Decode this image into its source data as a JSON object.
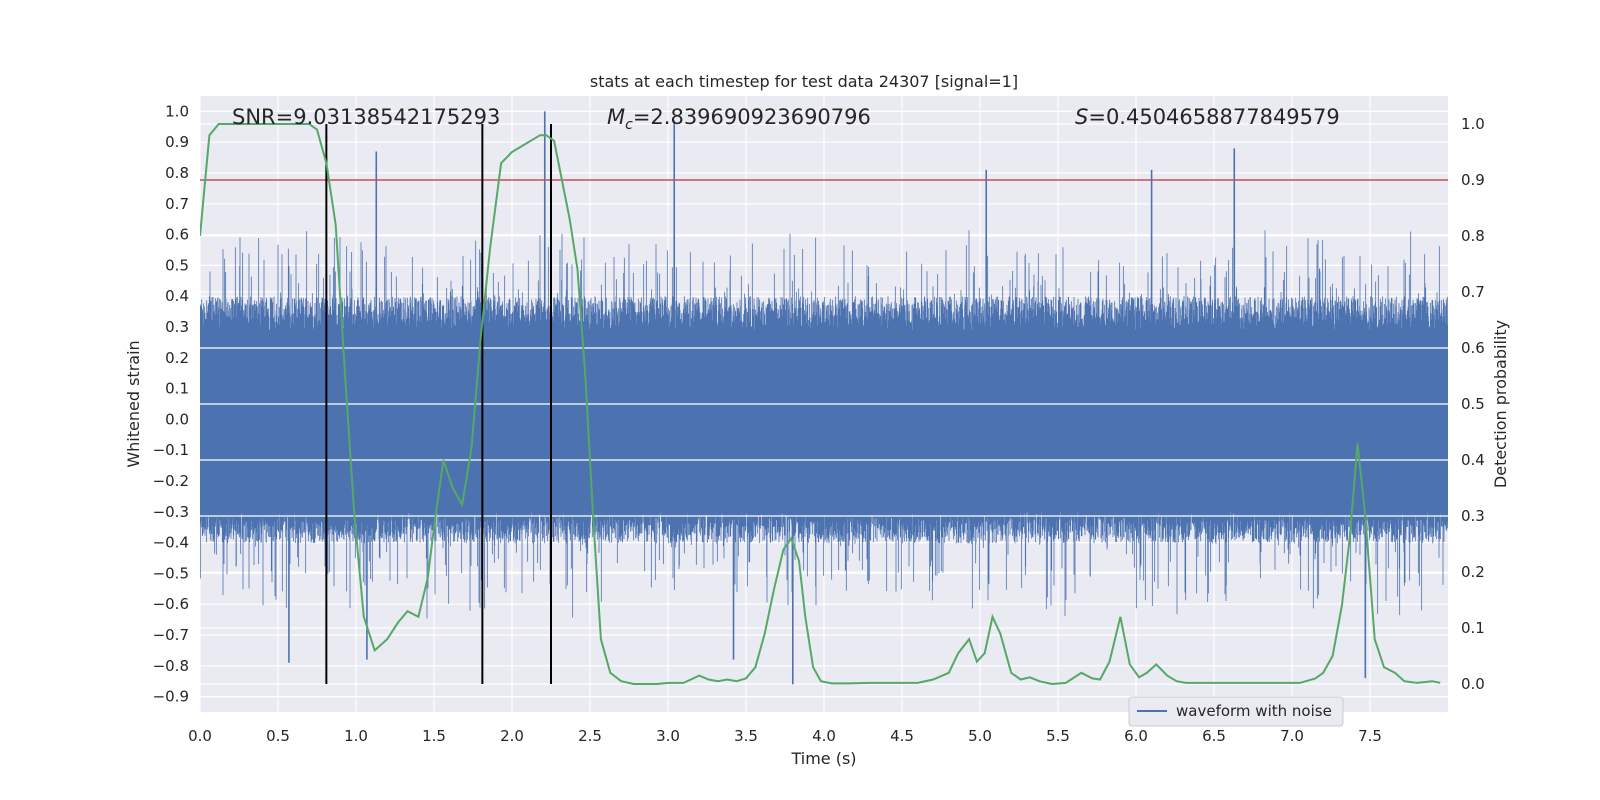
{
  "chart_data": {
    "type": "line",
    "title": "stats at each timestep for test data 24307 [signal=1]",
    "xlabel": "Time (s)",
    "ylabel_left": "Whitened strain",
    "ylabel_right": "Detection probability",
    "xlim": [
      0,
      8.0
    ],
    "ylim_left": [
      -0.95,
      1.05
    ],
    "ylim_right": [
      -0.05,
      1.05
    ],
    "x_ticks": [
      "0.0",
      "0.5",
      "1.0",
      "1.5",
      "2.0",
      "2.5",
      "3.0",
      "3.5",
      "4.0",
      "4.5",
      "5.0",
      "5.5",
      "6.0",
      "6.5",
      "7.0",
      "7.5"
    ],
    "y_left_ticks": [
      "-0.9",
      "-0.8",
      "-0.7",
      "-0.6",
      "-0.5",
      "-0.4",
      "-0.3",
      "-0.2",
      "-0.1",
      "0.0",
      "0.1",
      "0.2",
      "0.3",
      "0.4",
      "0.5",
      "0.6",
      "0.7",
      "0.8",
      "0.9",
      "1.0"
    ],
    "y_right_ticks": [
      "0.0",
      "0.1",
      "0.2",
      "0.3",
      "0.4",
      "0.5",
      "0.6",
      "0.7",
      "0.8",
      "0.9",
      "1.0"
    ],
    "annotations": {
      "snr": "SNR=9.03138542175293",
      "mc_symbol": "M",
      "mc_sub": "c",
      "mc_value": "=2.839690923690796",
      "s_symbol": "S",
      "s_value": "=0.4504658877849579"
    },
    "threshold": {
      "axis": "right",
      "value": 0.9,
      "color": "#c44e52"
    },
    "vertical_markers": {
      "x": [
        0.81,
        1.81,
        2.25
      ],
      "y_range_right": [
        0.0,
        1.0
      ],
      "color": "#000000"
    },
    "grid": true,
    "legend": {
      "location": "lower-right",
      "entries": [
        {
          "label": "waveform with noise",
          "color": "#4c72b0"
        }
      ]
    },
    "series": [
      {
        "name": "waveform with noise",
        "axis": "left",
        "style": "dense-noise",
        "color": "#4c72b0",
        "envelope_typical": [
          -0.35,
          0.4
        ],
        "peaks": [
          {
            "x": 0.57,
            "y": -0.79
          },
          {
            "x": 1.07,
            "y": -0.78
          },
          {
            "x": 1.13,
            "y": 0.87
          },
          {
            "x": 1.81,
            "y": -0.76
          },
          {
            "x": 2.21,
            "y": 1.0
          },
          {
            "x": 3.04,
            "y": 0.97
          },
          {
            "x": 3.42,
            "y": -0.78
          },
          {
            "x": 3.8,
            "y": -0.86
          },
          {
            "x": 5.04,
            "y": 0.81
          },
          {
            "x": 6.1,
            "y": 0.81
          },
          {
            "x": 6.63,
            "y": 0.88
          },
          {
            "x": 7.47,
            "y": -0.84
          }
        ]
      },
      {
        "axis": "right",
        "style": "line",
        "color": "#55a868",
        "x": [
          0.0,
          0.06,
          0.12,
          0.2,
          0.3,
          0.4,
          0.5,
          0.6,
          0.7,
          0.75,
          0.81,
          0.87,
          0.93,
          0.99,
          1.05,
          1.12,
          1.2,
          1.27,
          1.33,
          1.4,
          1.46,
          1.5,
          1.56,
          1.62,
          1.68,
          1.74,
          1.8,
          1.86,
          1.93,
          2.0,
          2.06,
          2.12,
          2.18,
          2.22,
          2.27,
          2.32,
          2.37,
          2.42,
          2.47,
          2.52,
          2.57,
          2.63,
          2.7,
          2.78,
          2.86,
          2.93,
          3.0,
          3.1,
          3.2,
          3.26,
          3.32,
          3.38,
          3.44,
          3.5,
          3.56,
          3.62,
          3.68,
          3.74,
          3.79,
          3.84,
          3.88,
          3.93,
          3.98,
          4.05,
          4.15,
          4.3,
          4.45,
          4.6,
          4.7,
          4.8,
          4.86,
          4.93,
          4.98,
          5.03,
          5.08,
          5.13,
          5.2,
          5.26,
          5.32,
          5.38,
          5.46,
          5.55,
          5.65,
          5.72,
          5.77,
          5.83,
          5.9,
          5.96,
          6.02,
          6.07,
          6.13,
          6.2,
          6.26,
          6.32,
          6.38,
          6.45,
          6.55,
          6.7,
          6.9,
          7.05,
          7.15,
          7.2,
          7.26,
          7.32,
          7.37,
          7.42,
          7.47,
          7.53,
          7.59,
          7.66,
          7.72,
          7.8,
          7.9,
          7.95
        ],
        "y": [
          0.8,
          0.98,
          1.0,
          1.0,
          1.0,
          1.0,
          1.0,
          1.0,
          1.0,
          0.99,
          0.93,
          0.82,
          0.55,
          0.3,
          0.12,
          0.06,
          0.08,
          0.11,
          0.13,
          0.12,
          0.19,
          0.28,
          0.4,
          0.35,
          0.32,
          0.42,
          0.62,
          0.78,
          0.93,
          0.95,
          0.96,
          0.97,
          0.98,
          0.98,
          0.97,
          0.9,
          0.83,
          0.74,
          0.55,
          0.3,
          0.08,
          0.02,
          0.005,
          0.0,
          0.0,
          0.0,
          0.002,
          0.002,
          0.015,
          0.008,
          0.005,
          0.008,
          0.005,
          0.01,
          0.03,
          0.09,
          0.17,
          0.24,
          0.26,
          0.22,
          0.12,
          0.03,
          0.005,
          0.001,
          0.001,
          0.002,
          0.002,
          0.002,
          0.008,
          0.02,
          0.055,
          0.08,
          0.04,
          0.055,
          0.12,
          0.09,
          0.02,
          0.008,
          0.012,
          0.005,
          0.0,
          0.002,
          0.02,
          0.01,
          0.008,
          0.04,
          0.12,
          0.035,
          0.012,
          0.02,
          0.035,
          0.015,
          0.005,
          0.002,
          0.002,
          0.002,
          0.002,
          0.002,
          0.002,
          0.002,
          0.01,
          0.02,
          0.05,
          0.14,
          0.26,
          0.43,
          0.3,
          0.08,
          0.03,
          0.02,
          0.005,
          0.002,
          0.005,
          0.002
        ]
      }
    ]
  }
}
